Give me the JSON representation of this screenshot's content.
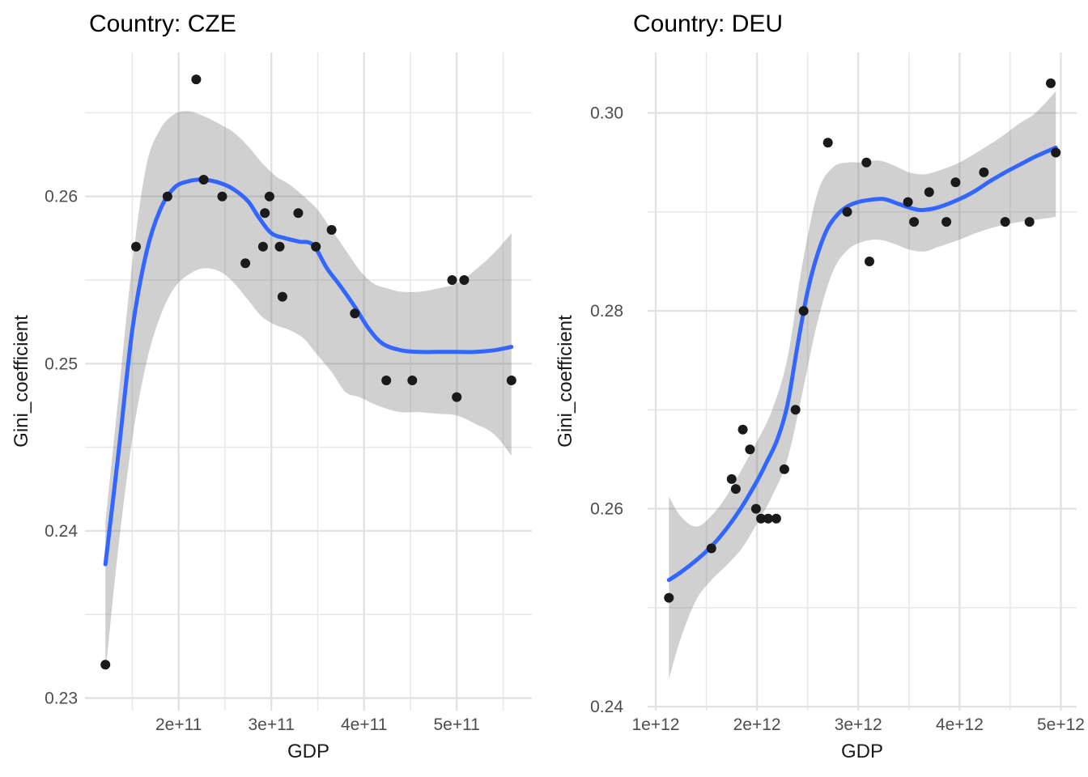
{
  "page": {
    "background": "#ffffff"
  },
  "style": {
    "point_color": "#1a1a1a",
    "smooth_line_color": "#3366FF",
    "ribbon_color": "rgba(120,120,120,0.35)",
    "grid_major_color": "#e2e2e2",
    "grid_minor_color": "#e9e9e9",
    "tick_label_color": "#4d4d4d",
    "title_color": "#000000",
    "axis_title_color": "#1a1a1a"
  },
  "chart_data": [
    {
      "type": "scatter",
      "facet": "CZE",
      "title": "Country: CZE",
      "xlabel": "GDP",
      "ylabel": "Gini_coefficient",
      "grid": true,
      "legend": "none",
      "x_domain": [
        99000000000.0,
        581000000000.0
      ],
      "y_domain": [
        0.22925,
        0.2686
      ],
      "x_major_ticks": [
        {
          "value": 200000000000.0,
          "label": "2e+11"
        },
        {
          "value": 300000000000.0,
          "label": "3e+11"
        },
        {
          "value": 400000000000.0,
          "label": "4e+11"
        },
        {
          "value": 500000000000.0,
          "label": "5e+11"
        }
      ],
      "x_minor_ticks": [
        150000000000.0,
        250000000000.0,
        350000000000.0,
        450000000000.0,
        550000000000.0
      ],
      "y_major_ticks": [
        {
          "value": 0.23,
          "label": "0.23"
        },
        {
          "value": 0.24,
          "label": "0.24"
        },
        {
          "value": 0.25,
          "label": "0.25"
        },
        {
          "value": 0.26,
          "label": "0.26"
        }
      ],
      "y_minor_ticks": [
        0.235,
        0.245,
        0.255,
        0.265
      ],
      "points": [
        [
          121000000000.0,
          0.232
        ],
        [
          154000000000.0,
          0.257
        ],
        [
          188000000000.0,
          0.26
        ],
        [
          219000000000.0,
          0.267
        ],
        [
          227000000000.0,
          0.261
        ],
        [
          247000000000.0,
          0.26
        ],
        [
          272000000000.0,
          0.256
        ],
        [
          291000000000.0,
          0.257
        ],
        [
          293000000000.0,
          0.259
        ],
        [
          298000000000.0,
          0.26
        ],
        [
          309000000000.0,
          0.257
        ],
        [
          312000000000.0,
          0.254
        ],
        [
          329000000000.0,
          0.259
        ],
        [
          348000000000.0,
          0.257
        ],
        [
          365000000000.0,
          0.258
        ],
        [
          390000000000.0,
          0.253
        ],
        [
          424000000000.0,
          0.249
        ],
        [
          452000000000.0,
          0.249
        ],
        [
          495000000000.0,
          0.255
        ],
        [
          508000000000.0,
          0.255
        ],
        [
          500000000000.0,
          0.248
        ],
        [
          559000000000.0,
          0.249
        ]
      ],
      "smooth_line": [
        [
          121000000000.0,
          0.238
        ],
        [
          135000000000.0,
          0.2446
        ],
        [
          150000000000.0,
          0.252
        ],
        [
          165000000000.0,
          0.2566
        ],
        [
          180000000000.0,
          0.2592
        ],
        [
          195000000000.0,
          0.2605
        ],
        [
          210000000000.0,
          0.2609
        ],
        [
          227000000000.0,
          0.261
        ],
        [
          245000000000.0,
          0.2608
        ],
        [
          260000000000.0,
          0.2604
        ],
        [
          275000000000.0,
          0.2597
        ],
        [
          287000000000.0,
          0.2587
        ],
        [
          300000000000.0,
          0.2578
        ],
        [
          315000000000.0,
          0.2575
        ],
        [
          330000000000.0,
          0.2573
        ],
        [
          345000000000.0,
          0.2571
        ],
        [
          360000000000.0,
          0.2557
        ],
        [
          375000000000.0,
          0.2546
        ],
        [
          390000000000.0,
          0.2534
        ],
        [
          405000000000.0,
          0.2521
        ],
        [
          420000000000.0,
          0.2512
        ],
        [
          440000000000.0,
          0.2508
        ],
        [
          460000000000.0,
          0.2507
        ],
        [
          480000000000.0,
          0.2507
        ],
        [
          500000000000.0,
          0.2507
        ],
        [
          520000000000.0,
          0.2507
        ],
        [
          540000000000.0,
          0.2508
        ],
        [
          559000000000.0,
          0.251
        ]
      ],
      "ribbon": [
        [
          121000000000.0,
          0.2315,
          0.2405
        ],
        [
          135000000000.0,
          0.239,
          0.248
        ],
        [
          150000000000.0,
          0.2455,
          0.256
        ],
        [
          165000000000.0,
          0.25,
          0.2618
        ],
        [
          180000000000.0,
          0.2528,
          0.264
        ],
        [
          195000000000.0,
          0.2545,
          0.2649
        ],
        [
          210000000000.0,
          0.2553,
          0.2651
        ],
        [
          227000000000.0,
          0.2557,
          0.2648
        ],
        [
          245000000000.0,
          0.2555,
          0.2643
        ],
        [
          260000000000.0,
          0.2548,
          0.2638
        ],
        [
          275000000000.0,
          0.2538,
          0.263
        ],
        [
          290000000000.0,
          0.2528,
          0.262
        ],
        [
          305000000000.0,
          0.2523,
          0.2612
        ],
        [
          320000000000.0,
          0.252,
          0.2607
        ],
        [
          335000000000.0,
          0.2515,
          0.26
        ],
        [
          350000000000.0,
          0.2505,
          0.2592
        ],
        [
          365000000000.0,
          0.2495,
          0.258
        ],
        [
          380000000000.0,
          0.2483,
          0.2568
        ],
        [
          395000000000.0,
          0.248,
          0.2556
        ],
        [
          410000000000.0,
          0.2476,
          0.2548
        ],
        [
          425000000000.0,
          0.2473,
          0.2545
        ],
        [
          440000000000.0,
          0.2471,
          0.2543
        ],
        [
          460000000000.0,
          0.2471,
          0.2543
        ],
        [
          480000000000.0,
          0.247,
          0.2545
        ],
        [
          500000000000.0,
          0.2469,
          0.2548
        ],
        [
          520000000000.0,
          0.2464,
          0.2556
        ],
        [
          540000000000.0,
          0.2458,
          0.2566
        ],
        [
          559000000000.0,
          0.2445,
          0.2578
        ]
      ]
    },
    {
      "type": "scatter",
      "facet": "DEU",
      "title": "Country: DEU",
      "xlabel": "GDP",
      "ylabel": "Gini_coefficient",
      "grid": true,
      "legend": "none",
      "x_domain": [
        920000000000.0,
        5156000000000.0
      ],
      "y_domain": [
        0.2396,
        0.3061
      ],
      "x_major_ticks": [
        {
          "value": 1000000000000.0,
          "label": "1e+12"
        },
        {
          "value": 2000000000000.0,
          "label": "2e+12"
        },
        {
          "value": 3000000000000.0,
          "label": "3e+12"
        },
        {
          "value": 4000000000000.0,
          "label": "4e+12"
        },
        {
          "value": 5000000000000.0,
          "label": "5e+12"
        }
      ],
      "x_minor_ticks": [
        1500000000000.0,
        2500000000000.0,
        3500000000000.0,
        4500000000000.0
      ],
      "y_major_ticks": [
        {
          "value": 0.24,
          "label": "0.24"
        },
        {
          "value": 0.26,
          "label": "0.26"
        },
        {
          "value": 0.28,
          "label": "0.28"
        },
        {
          "value": 0.3,
          "label": "0.30"
        }
      ],
      "y_minor_ticks": [
        0.25,
        0.27,
        0.29
      ],
      "points": [
        [
          1130000000000.0,
          0.251
        ],
        [
          1550000000000.0,
          0.256
        ],
        [
          1750000000000.0,
          0.263
        ],
        [
          1790000000000.0,
          0.262
        ],
        [
          1860000000000.0,
          0.268
        ],
        [
          1930000000000.0,
          0.266
        ],
        [
          1990000000000.0,
          0.26
        ],
        [
          2040000000000.0,
          0.259
        ],
        [
          2110000000000.0,
          0.259
        ],
        [
          2190000000000.0,
          0.259
        ],
        [
          2270000000000.0,
          0.264
        ],
        [
          2380000000000.0,
          0.27
        ],
        [
          2460000000000.0,
          0.28
        ],
        [
          2700000000000.0,
          0.297
        ],
        [
          2890000000000.0,
          0.29
        ],
        [
          3080000000000.0,
          0.295
        ],
        [
          3110000000000.0,
          0.285
        ],
        [
          3490000000000.0,
          0.291
        ],
        [
          3550000000000.0,
          0.289
        ],
        [
          3700000000000.0,
          0.292
        ],
        [
          3870000000000.0,
          0.289
        ],
        [
          3960000000000.0,
          0.293
        ],
        [
          4240000000000.0,
          0.294
        ],
        [
          4450000000000.0,
          0.289
        ],
        [
          4690000000000.0,
          0.289
        ],
        [
          4900000000000.0,
          0.303
        ],
        [
          4950000000000.0,
          0.296
        ]
      ],
      "smooth_line": [
        [
          1130000000000.0,
          0.2528
        ],
        [
          1250000000000.0,
          0.2536
        ],
        [
          1400000000000.0,
          0.2548
        ],
        [
          1550000000000.0,
          0.2562
        ],
        [
          1700000000000.0,
          0.258
        ],
        [
          1850000000000.0,
          0.2602
        ],
        [
          2000000000000.0,
          0.2628
        ],
        [
          2100000000000.0,
          0.2648
        ],
        [
          2200000000000.0,
          0.267
        ],
        [
          2300000000000.0,
          0.2705
        ],
        [
          2400000000000.0,
          0.2765
        ],
        [
          2500000000000.0,
          0.282
        ],
        [
          2600000000000.0,
          0.2858
        ],
        [
          2700000000000.0,
          0.2884
        ],
        [
          2800000000000.0,
          0.2898
        ],
        [
          2900000000000.0,
          0.2906
        ],
        [
          3000000000000.0,
          0.291
        ],
        [
          3100000000000.0,
          0.2912
        ],
        [
          3250000000000.0,
          0.2913
        ],
        [
          3400000000000.0,
          0.2908
        ],
        [
          3550000000000.0,
          0.2903
        ],
        [
          3650000000000.0,
          0.2902
        ],
        [
          3800000000000.0,
          0.2905
        ],
        [
          4000000000000.0,
          0.2913
        ],
        [
          4150000000000.0,
          0.2921
        ],
        [
          4300000000000.0,
          0.2931
        ],
        [
          4450000000000.0,
          0.294
        ],
        [
          4600000000000.0,
          0.2948
        ],
        [
          4750000000000.0,
          0.2956
        ],
        [
          4950000000000.0,
          0.2965
        ]
      ],
      "ribbon": [
        [
          1130000000000.0,
          0.2428,
          0.2612
        ],
        [
          1250000000000.0,
          0.247,
          0.2592
        ],
        [
          1400000000000.0,
          0.2508,
          0.2582
        ],
        [
          1550000000000.0,
          0.2528,
          0.2593
        ],
        [
          1700000000000.0,
          0.2543,
          0.2613
        ],
        [
          1850000000000.0,
          0.256,
          0.264
        ],
        [
          2000000000000.0,
          0.2585,
          0.2668
        ],
        [
          2150000000000.0,
          0.2613,
          0.27
        ],
        [
          2300000000000.0,
          0.265,
          0.2752
        ],
        [
          2450000000000.0,
          0.2718,
          0.2848
        ],
        [
          2600000000000.0,
          0.279,
          0.292
        ],
        [
          2750000000000.0,
          0.284,
          0.2945
        ],
        [
          2900000000000.0,
          0.2862,
          0.295
        ],
        [
          3050000000000.0,
          0.287,
          0.295
        ],
        [
          3200000000000.0,
          0.2872,
          0.2952
        ],
        [
          3350000000000.0,
          0.2868,
          0.2947
        ],
        [
          3500000000000.0,
          0.2862,
          0.294
        ],
        [
          3650000000000.0,
          0.286,
          0.2938
        ],
        [
          3800000000000.0,
          0.2865,
          0.2942
        ],
        [
          4000000000000.0,
          0.2872,
          0.295
        ],
        [
          4200000000000.0,
          0.288,
          0.2962
        ],
        [
          4400000000000.0,
          0.2886,
          0.2975
        ],
        [
          4600000000000.0,
          0.289,
          0.299
        ],
        [
          4750000000000.0,
          0.2892,
          0.3
        ],
        [
          4950000000000.0,
          0.2895,
          0.3022
        ]
      ]
    }
  ]
}
